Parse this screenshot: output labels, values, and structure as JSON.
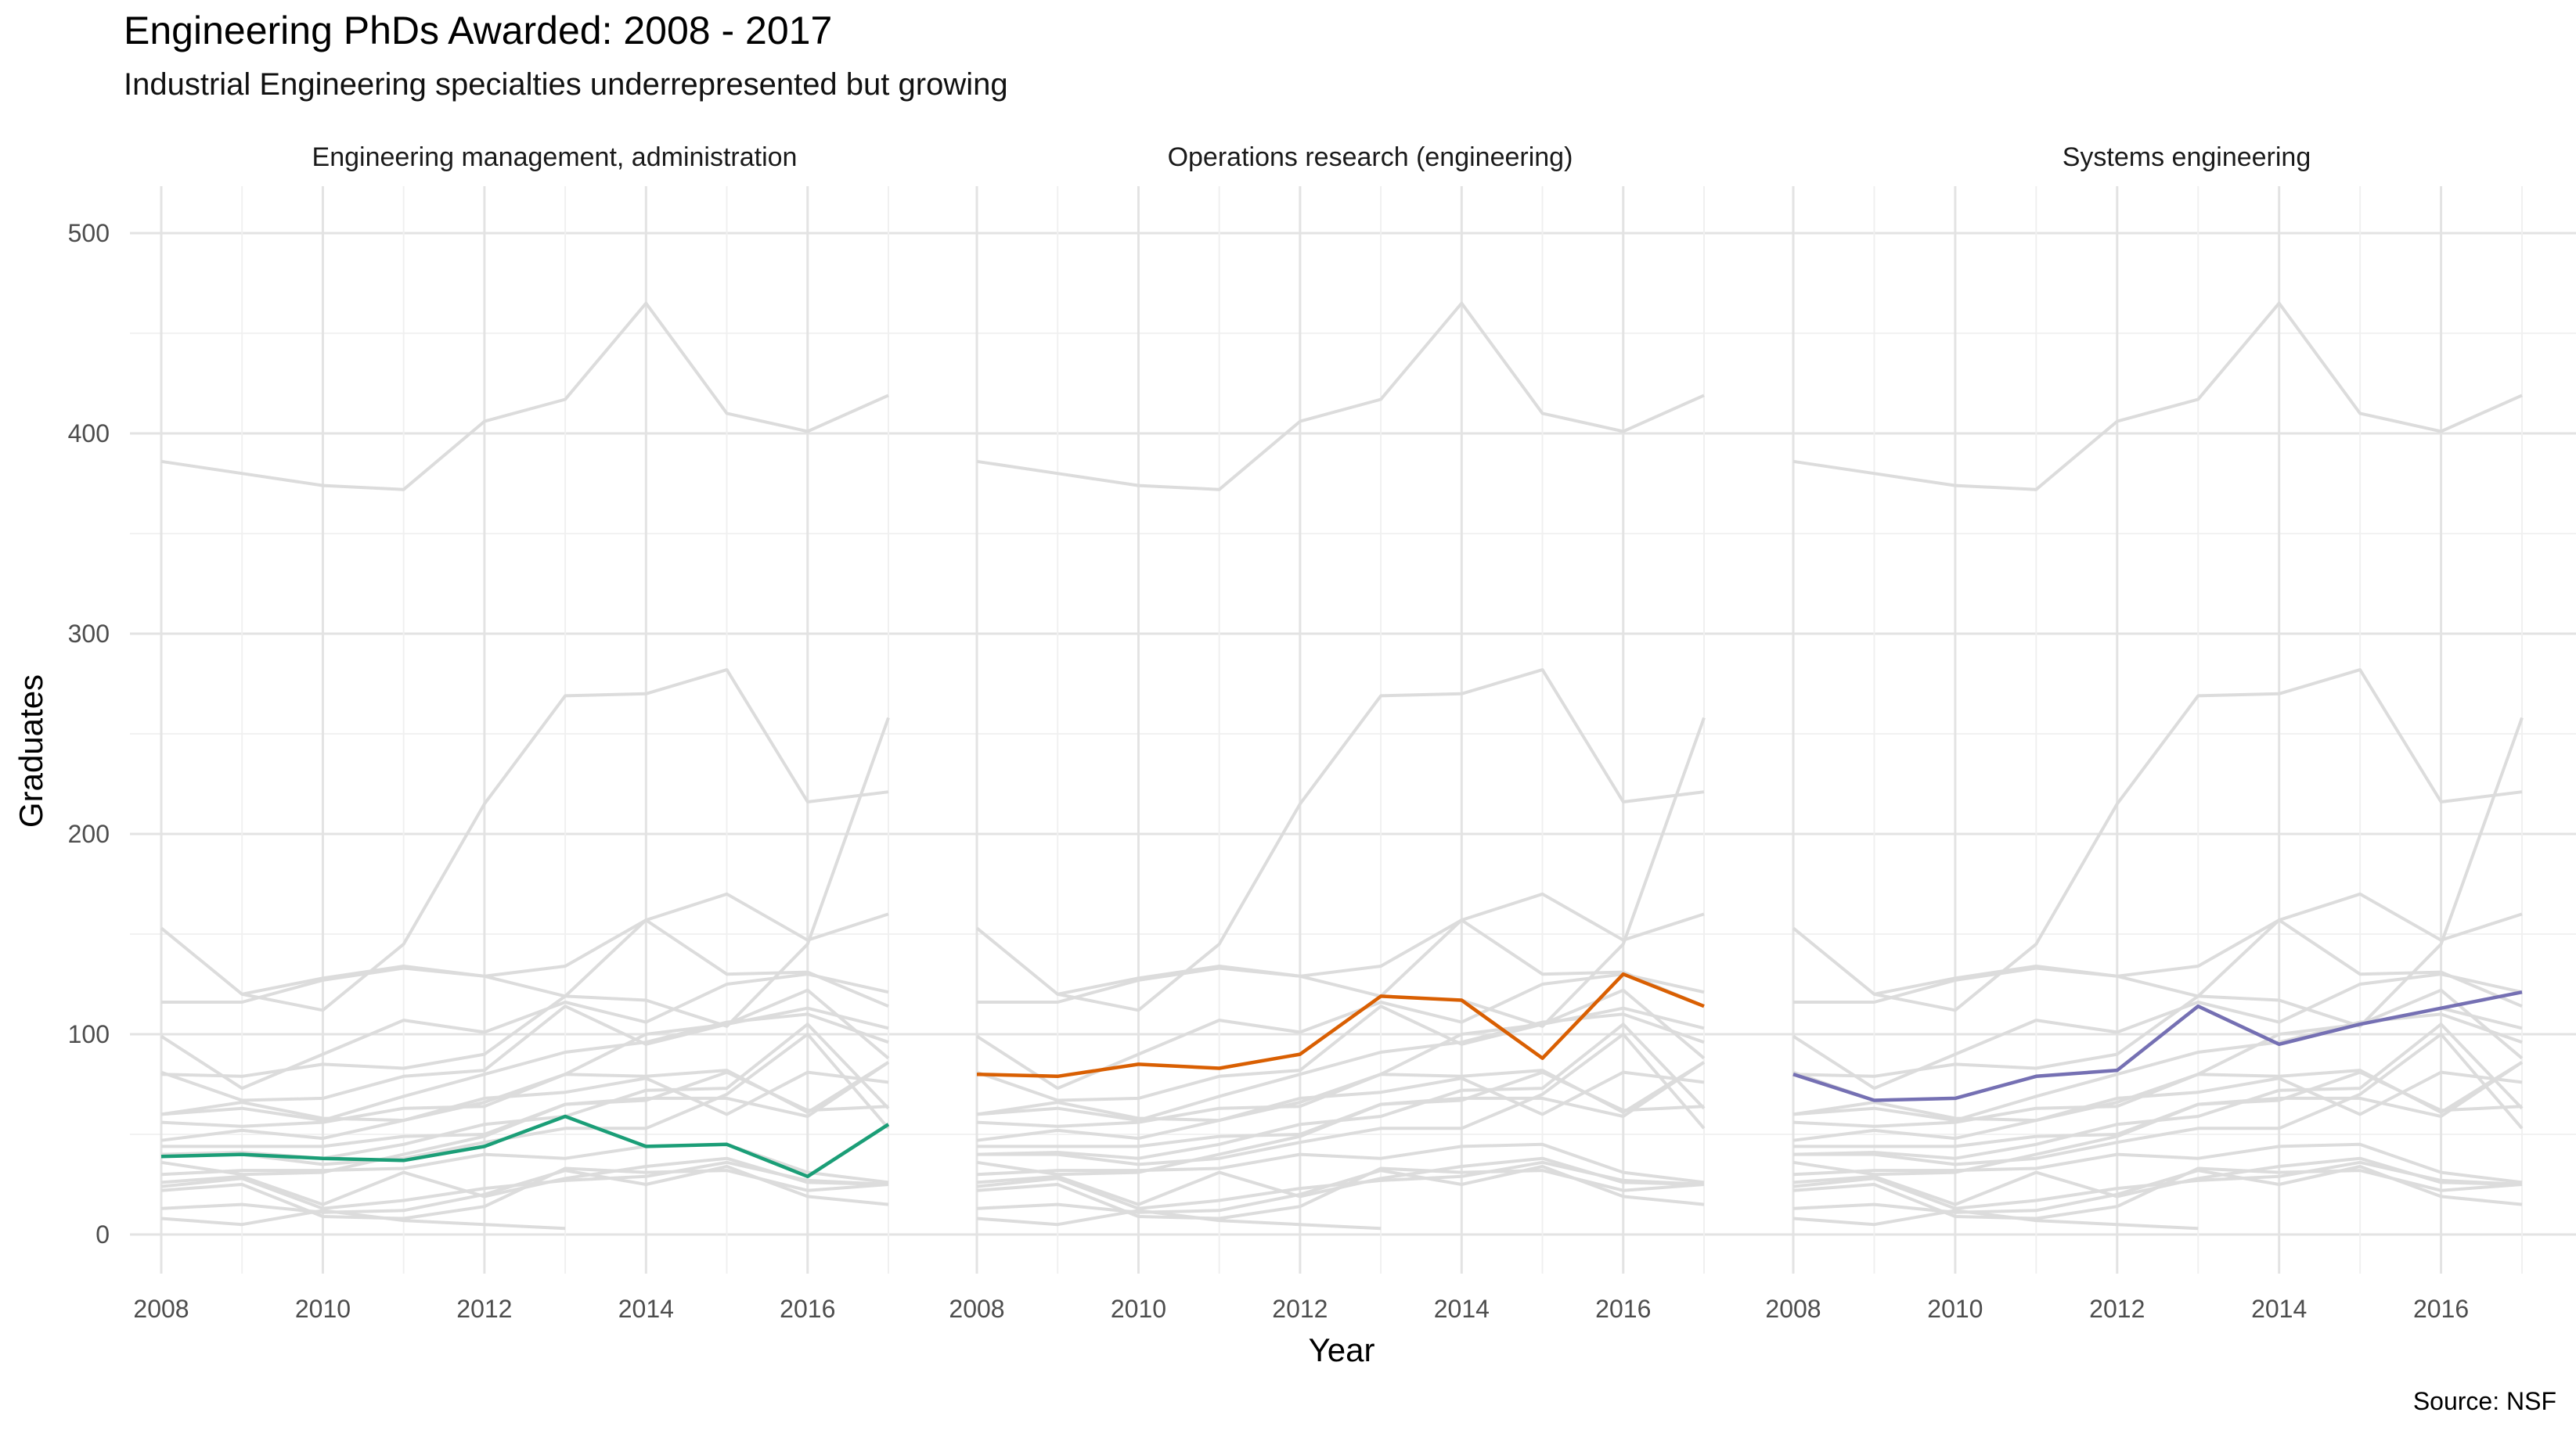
{
  "title": "Engineering PhDs Awarded: 2008 - 2017",
  "subtitle": "Industrial Engineering specialties underrepresented but growing",
  "caption": "Source: NSF",
  "chart_data": {
    "type": "line",
    "facet": "small multiples",
    "xlabel": "Year",
    "ylabel": "Graduates",
    "x": [
      2008,
      2009,
      2010,
      2011,
      2012,
      2013,
      2014,
      2015,
      2016,
      2017
    ],
    "xlim": [
      2008,
      2017
    ],
    "ylim": [
      0,
      500
    ],
    "x_ticks": [
      "2008",
      "2010",
      "2012",
      "2014",
      "2016"
    ],
    "y_ticks": [
      "0",
      "100",
      "200",
      "300",
      "400",
      "500"
    ],
    "grid": true,
    "legend": "none",
    "background_color": "#dcdcdc",
    "background_series": [
      [
        386,
        380,
        374,
        372,
        406,
        417,
        465,
        410,
        401,
        419
      ],
      [
        null,
        120,
        112,
        145,
        215,
        269,
        270,
        282,
        216,
        221
      ],
      [
        153,
        120,
        128,
        134,
        129,
        134,
        157,
        170,
        147,
        160
      ],
      [
        116,
        116,
        127,
        133,
        129,
        119,
        117,
        104,
        145,
        258
      ],
      [
        99,
        73,
        90,
        107,
        101,
        116,
        106,
        125,
        130,
        121
      ],
      [
        80,
        79,
        85,
        83,
        90,
        119,
        157,
        130,
        131,
        114
      ],
      [
        81,
        67,
        68,
        79,
        82,
        114,
        95,
        105,
        113,
        103
      ],
      [
        60,
        63,
        57,
        69,
        80,
        91,
        96,
        106,
        110,
        96
      ],
      [
        60,
        66,
        58,
        57,
        66,
        80,
        100,
        105,
        122,
        88
      ],
      [
        56,
        54,
        56,
        63,
        64,
        80,
        79,
        82,
        61,
        86
      ],
      [
        47,
        52,
        48,
        57,
        68,
        71,
        78,
        60,
        81,
        76
      ],
      [
        44,
        44,
        44,
        49,
        50,
        65,
        67,
        81,
        62,
        64
      ],
      [
        40,
        41,
        38,
        45,
        55,
        59,
        72,
        73,
        105,
        63
      ],
      [
        40,
        40,
        35,
        38,
        46,
        53,
        53,
        70,
        100,
        53
      ],
      [
        36,
        30,
        31,
        40,
        49,
        65,
        68,
        68,
        59,
        86
      ],
      [
        30,
        32,
        32,
        33,
        40,
        38,
        44,
        45,
        31,
        26
      ],
      [
        26,
        29,
        15,
        31,
        19,
        28,
        34,
        38,
        26,
        25
      ],
      [
        24,
        28,
        13,
        17,
        23,
        27,
        29,
        36,
        27,
        25
      ],
      [
        22,
        25,
        9,
        8,
        14,
        33,
        31,
        32,
        22,
        25
      ],
      [
        13,
        15,
        11,
        12,
        20,
        32,
        25,
        34,
        19,
        15
      ],
      [
        8,
        5,
        12,
        7,
        5,
        3,
        null,
        null,
        null,
        null
      ]
    ],
    "panels": [
      {
        "name": "Engineering management, administration",
        "color": "#1b9e77",
        "values": [
          39,
          40,
          38,
          37,
          44,
          59,
          44,
          45,
          29,
          55
        ]
      },
      {
        "name": "Operations research (engineering)",
        "color": "#d95f02",
        "values": [
          80,
          79,
          85,
          83,
          90,
          119,
          117,
          88,
          130,
          114
        ]
      },
      {
        "name": "Systems engineering",
        "color": "#7570b3",
        "values": [
          80,
          67,
          68,
          79,
          82,
          114,
          95,
          105,
          113,
          121
        ]
      }
    ]
  }
}
